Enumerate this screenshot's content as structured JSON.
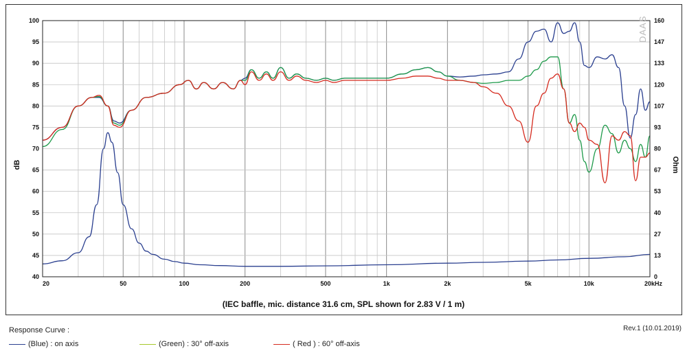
{
  "chart_data": {
    "type": "line",
    "caption": "(IEC baffle, mic. distance 31.6 cm, SPL shown for 2.83 V / 1 m)",
    "ylabel_left": "dB",
    "ylabel_right": "Ohm",
    "watermark": "DAAS",
    "x_scale": "log",
    "xlim": [
      20,
      20000
    ],
    "ylim_left": [
      40,
      100
    ],
    "ylim_right": [
      0,
      160
    ],
    "x_ticks": [
      {
        "value": 20,
        "label": "20"
      },
      {
        "value": 50,
        "label": "50"
      },
      {
        "value": 100,
        "label": "100"
      },
      {
        "value": 200,
        "label": "200"
      },
      {
        "value": 500,
        "label": "500"
      },
      {
        "value": 1000,
        "label": "1k"
      },
      {
        "value": 2000,
        "label": "2k"
      },
      {
        "value": 5000,
        "label": "5k"
      },
      {
        "value": 10000,
        "label": "10k"
      },
      {
        "value": 20000,
        "label": "20kHz"
      }
    ],
    "y_ticks_left": [
      "100",
      "95",
      "90",
      "85",
      "80",
      "75",
      "70",
      "65",
      "60",
      "55",
      "50",
      "45",
      "40"
    ],
    "y_ticks_right": [
      "160",
      "147",
      "133",
      "120",
      "107",
      "93",
      "80",
      "67",
      "53",
      "40",
      "27",
      "13",
      "0"
    ],
    "grid": true,
    "series": [
      {
        "name": "(Blue) : on axis",
        "color": "#2a3f8f",
        "axis": "left",
        "x": [
          20,
          25,
          30,
          35,
          38,
          42,
          45,
          48,
          55,
          65,
          80,
          95,
          105,
          115,
          125,
          140,
          155,
          175,
          190,
          200,
          215,
          235,
          255,
          275,
          300,
          330,
          360,
          400,
          450,
          500,
          550,
          620,
          700,
          800,
          900,
          1000,
          1200,
          1400,
          1600,
          1800,
          2000,
          2300,
          2700,
          3000,
          3500,
          4000,
          4500,
          5000,
          5500,
          6000,
          6500,
          7000,
          7500,
          8000,
          8500,
          9000,
          9500,
          10000,
          11000,
          12000,
          13000,
          14000,
          15000,
          16000,
          17000,
          18000,
          19000,
          20000
        ],
        "y": [
          72,
          75,
          80,
          82,
          82,
          80,
          76.5,
          76,
          79,
          82,
          83,
          85,
          86,
          84,
          85.5,
          84,
          85.5,
          84,
          86,
          86.5,
          88.5,
          86.5,
          88,
          86.5,
          89,
          86.5,
          87.5,
          86.5,
          86,
          86.5,
          86,
          86.5,
          86.5,
          86.5,
          86.5,
          86.5,
          87.5,
          88.5,
          89,
          88,
          87,
          86.8,
          87,
          87.3,
          87.5,
          88,
          91,
          95,
          97.5,
          98,
          95,
          99.5,
          97,
          97.5,
          99.5,
          95,
          89.5,
          89,
          91.5,
          91,
          92,
          89,
          80,
          72.5,
          78,
          84,
          79,
          81
        ]
      },
      {
        "name": "(Green) : 30° off-axis",
        "color": "#1e9a4a",
        "axis": "left",
        "x": [
          20,
          25,
          30,
          35,
          38,
          42,
          45,
          48,
          55,
          65,
          80,
          95,
          105,
          115,
          125,
          140,
          155,
          175,
          190,
          200,
          215,
          235,
          255,
          275,
          300,
          330,
          360,
          400,
          450,
          500,
          550,
          620,
          700,
          800,
          900,
          1000,
          1200,
          1400,
          1600,
          1800,
          2000,
          2300,
          2700,
          3000,
          3500,
          4000,
          4500,
          5000,
          5500,
          6000,
          6500,
          7000,
          7500,
          8000,
          8500,
          9000,
          9500,
          10000,
          11000,
          12000,
          13000,
          14000,
          15000,
          16000,
          17000,
          18000,
          19000,
          20000
        ],
        "y": [
          70.5,
          74.5,
          80,
          82,
          82.2,
          80,
          76,
          75.5,
          79,
          82,
          83,
          85,
          86,
          84,
          85.5,
          84,
          85.5,
          84,
          86,
          86,
          88.5,
          86.5,
          88,
          86.5,
          89,
          86.5,
          87.5,
          86.5,
          86,
          86.5,
          86,
          86.5,
          86.5,
          86.5,
          86.5,
          86.5,
          87.5,
          88.5,
          89,
          88,
          87,
          86,
          85.5,
          85.3,
          85.5,
          86,
          86,
          87,
          88.5,
          90.5,
          91.5,
          91.5,
          84,
          76,
          78,
          72,
          67,
          64.5,
          70,
          75.5,
          73.5,
          69,
          72,
          70,
          67,
          71,
          68,
          73
        ]
      },
      {
        "name": "( Red ) : 60° off-axis",
        "color": "#d52a1e",
        "axis": "left",
        "x": [
          20,
          25,
          30,
          35,
          38,
          42,
          45,
          48,
          55,
          65,
          80,
          95,
          105,
          115,
          125,
          140,
          155,
          175,
          190,
          200,
          215,
          235,
          255,
          275,
          300,
          330,
          360,
          400,
          450,
          500,
          550,
          620,
          700,
          800,
          900,
          1000,
          1200,
          1400,
          1600,
          1800,
          2000,
          2300,
          2700,
          3000,
          3500,
          4000,
          4500,
          5000,
          5500,
          6000,
          6500,
          7000,
          7500,
          8000,
          8500,
          9000,
          9500,
          10000,
          11000,
          12000,
          13000,
          14000,
          15000,
          16000,
          17000,
          18000,
          19000,
          20000
        ],
        "y": [
          72,
          75,
          80,
          82,
          82.5,
          80,
          75.5,
          75,
          79,
          82,
          83,
          85,
          86,
          84,
          85.5,
          84,
          85.5,
          84,
          86,
          85,
          88,
          86,
          87.5,
          86,
          88,
          86,
          87,
          86,
          85.5,
          86,
          85.5,
          86,
          86,
          86,
          86,
          86,
          86.5,
          87,
          87,
          86.5,
          86,
          86,
          85.5,
          84.5,
          83,
          80,
          76.5,
          71.5,
          80,
          83,
          86.5,
          87.5,
          84,
          76,
          74,
          76,
          75,
          72,
          71,
          62,
          73,
          72,
          74,
          73,
          62.5,
          68,
          68,
          69
        ]
      },
      {
        "name": "impedance",
        "color": "#2a3f8f",
        "axis": "right",
        "x": [
          20,
          25,
          30,
          34,
          37,
          40,
          42,
          44,
          47,
          50,
          55,
          60,
          65,
          70,
          80,
          90,
          100,
          120,
          150,
          200,
          300,
          500,
          1000,
          2000,
          3000,
          5000,
          7000,
          10000,
          15000,
          20000
        ],
        "y": [
          8,
          10,
          15,
          25,
          45,
          80,
          90,
          84,
          65,
          45,
          30,
          21,
          16,
          14,
          11,
          9.5,
          8.5,
          7.5,
          7,
          6.5,
          6.5,
          6.8,
          7.5,
          8.5,
          9,
          9.8,
          10.5,
          11.5,
          12.5,
          14
        ]
      }
    ]
  },
  "footer": {
    "response_curve_label": "Response Curve :",
    "revision": "Rev.1 (10.01.2019)",
    "legend": [
      {
        "color": "#2a3f8f",
        "label": "(Blue)  : on axis"
      },
      {
        "color": "#a6c82a",
        "label": "(Green) : 30° off-axis"
      },
      {
        "color": "#d52a1e",
        "label": "( Red ) : 60° off-axis"
      }
    ]
  }
}
